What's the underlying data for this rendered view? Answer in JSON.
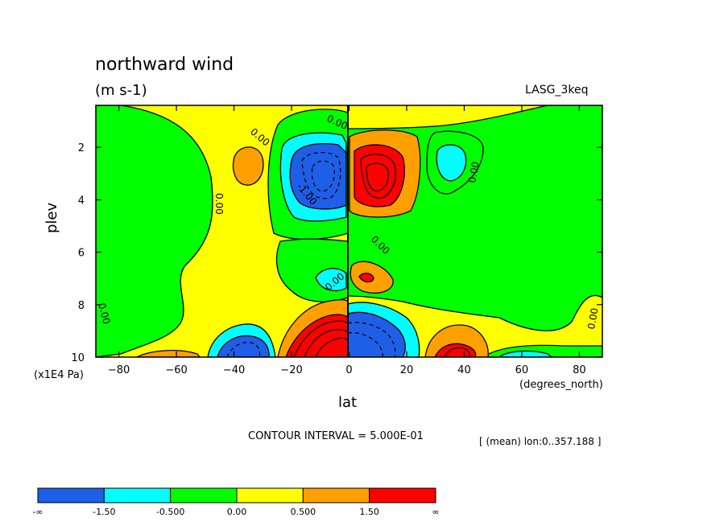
{
  "chart_data": {
    "type": "heatmap",
    "title": "northward wind",
    "subtitle": "(m s-1)",
    "dataset": "LASG_3keq",
    "ylabel": "plev",
    "yunits": "(x1E4 Pa)",
    "xlabel": "lat",
    "xunits": "(degrees_north)",
    "contour_interval": "CONTOUR INTERVAL = 5.000E-01",
    "averaging": "[ (mean) lon:0..357.188 ]",
    "xlim": [
      -88,
      88
    ],
    "ylim": [
      10,
      0.4
    ],
    "x_ticks": [
      -80,
      -60,
      -40,
      -20,
      0,
      20,
      40,
      60,
      80
    ],
    "y_ticks": [
      2,
      4,
      6,
      8,
      10
    ],
    "contour_labels": [
      "0.00",
      "-1.00"
    ],
    "colorbar": {
      "labels": [
        "-∞",
        "-1.50",
        "-0.500",
        "0.00",
        "0.500",
        "1.50",
        "∞"
      ],
      "colors": [
        "#1f5ee6",
        "#00ffff",
        "#00ff00",
        "#ffff00",
        "#ffa000",
        "#ff0000"
      ]
    },
    "features": [
      {
        "lat": -8,
        "plev": 2.8,
        "value": -3.0
      },
      {
        "lat": 7,
        "plev": 2.8,
        "value": 3.0
      },
      {
        "lat": -10,
        "plev": 9.6,
        "value": 3.5
      },
      {
        "lat": 10,
        "plev": 9.6,
        "value": -3.0
      },
      {
        "lat": -38,
        "plev": 9.7,
        "value": -2.0
      },
      {
        "lat": 37,
        "plev": 9.8,
        "value": 2.0
      },
      {
        "lat": -39,
        "plev": 2.3,
        "value": 0.6
      },
      {
        "lat": 38,
        "plev": 2.3,
        "value": -0.6
      },
      {
        "lat": -8,
        "plev": 6.9,
        "value": -0.6
      },
      {
        "lat": 7,
        "plev": 6.9,
        "value": 0.7
      }
    ]
  }
}
